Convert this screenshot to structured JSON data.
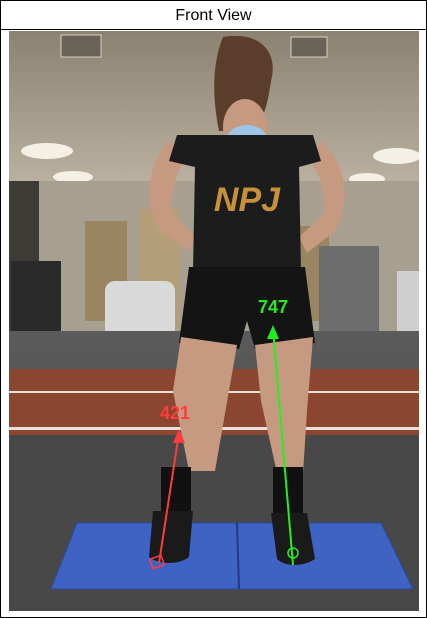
{
  "title": "Front View",
  "shirt_text": "NPJ",
  "colors": {
    "left_vector": "#ff3b3b",
    "right_vector": "#22ee22",
    "mat": "#3f63c4"
  },
  "vectors": [
    {
      "name": "left",
      "label": "421"
    },
    {
      "name": "right",
      "label": "747"
    }
  ]
}
